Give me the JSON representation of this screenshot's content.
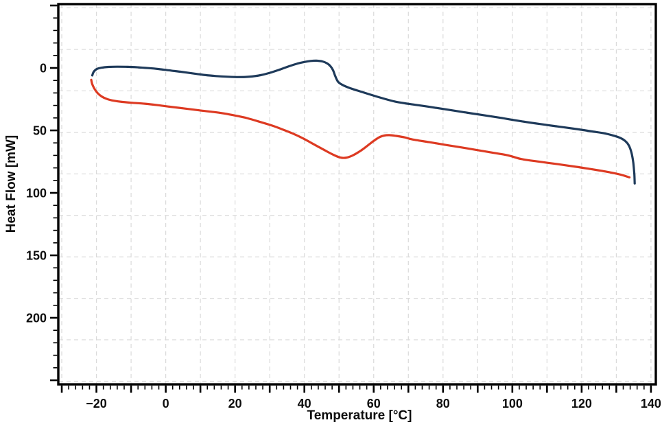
{
  "figure": {
    "background": "#ffffff",
    "spine_color": "#000000",
    "grid_color": "#dadada",
    "tick_color": "#000000",
    "tick_label_color": "#0d0d0d"
  },
  "axes": {
    "x_label": "Temperature [°C]",
    "y_label": "Heat Flow [mW]"
  },
  "chart_data": {
    "type": "line",
    "title": "",
    "xlabel": "Temperature [°C]",
    "ylabel": "Heat Flow [mW]",
    "xlim": [
      -30.8,
      141.4
    ],
    "ylim": [
      -51.1,
      253.3
    ],
    "y_axis_inverted": true,
    "grid": {
      "on": true,
      "style": "dashed",
      "x_step": 10,
      "y_values": [
        -48.1,
        -14.9,
        18.3,
        51.5,
        84.8,
        118.0,
        151.2,
        184.4,
        217.6,
        250.8
      ]
    },
    "x_major_tick_step": 10,
    "x_minor_tick_step": 2,
    "y_major_tick_step": 50,
    "y_minor_tick_step": 10,
    "x_tick_labels": [
      -20,
      0,
      20,
      40,
      60,
      80,
      100,
      120,
      140
    ],
    "y_tick_labels": [
      0,
      50,
      100,
      150,
      200
    ],
    "legend": "none",
    "series": [
      {
        "name": "red-lower-curve",
        "color": "#dd3a22",
        "points": [
          [
            -21.5,
            9.5
          ],
          [
            -21.2,
            13.0
          ],
          [
            -20.6,
            16.5
          ],
          [
            -19.7,
            20.0
          ],
          [
            -18.5,
            22.8
          ],
          [
            -17.0,
            24.8
          ],
          [
            -15.0,
            26.2
          ],
          [
            -12.5,
            27.2
          ],
          [
            -9.5,
            27.9
          ],
          [
            -6.0,
            28.6
          ],
          [
            -2.5,
            29.7
          ],
          [
            1.0,
            31.0
          ],
          [
            5.0,
            32.3
          ],
          [
            9.0,
            33.7
          ],
          [
            13.0,
            35.0
          ],
          [
            16.5,
            36.3
          ],
          [
            20.0,
            38.1
          ],
          [
            23.4,
            40.1
          ],
          [
            27.0,
            43.0
          ],
          [
            30.8,
            46.2
          ],
          [
            33.5,
            49.0
          ],
          [
            36.5,
            52.3
          ],
          [
            39.5,
            56.2
          ],
          [
            42.0,
            60.0
          ],
          [
            44.5,
            63.8
          ],
          [
            46.5,
            66.8
          ],
          [
            48.3,
            69.4
          ],
          [
            49.8,
            71.2
          ],
          [
            51.0,
            72.0
          ],
          [
            52.3,
            71.7
          ],
          [
            53.8,
            70.2
          ],
          [
            55.5,
            67.6
          ],
          [
            57.3,
            64.2
          ],
          [
            59.0,
            60.5
          ],
          [
            60.5,
            57.4
          ],
          [
            61.8,
            55.2
          ],
          [
            63.0,
            54.1
          ],
          [
            64.5,
            53.8
          ],
          [
            66.5,
            54.4
          ],
          [
            69.0,
            55.6
          ],
          [
            71.0,
            57.1
          ],
          [
            76.0,
            59.4
          ],
          [
            81.0,
            61.7
          ],
          [
            87.0,
            64.4
          ],
          [
            93.0,
            67.2
          ],
          [
            98.6,
            69.9
          ],
          [
            102.6,
            72.9
          ],
          [
            108.0,
            75.1
          ],
          [
            113.0,
            77.0
          ],
          [
            118.4,
            79.1
          ],
          [
            122.5,
            80.9
          ],
          [
            126.0,
            82.5
          ],
          [
            129.5,
            84.3
          ],
          [
            131.8,
            85.8
          ],
          [
            133.8,
            87.6
          ]
        ]
      },
      {
        "name": "navy-upper-curve",
        "color": "#1e3a5a",
        "points": [
          [
            -21.2,
            6.0
          ],
          [
            -20.8,
            3.2
          ],
          [
            -20.0,
            1.0
          ],
          [
            -18.5,
            -0.2
          ],
          [
            -16.5,
            -0.8
          ],
          [
            -14.0,
            -1.0
          ],
          [
            -11.0,
            -0.9
          ],
          [
            -8.0,
            -0.5
          ],
          [
            -5.0,
            0.1
          ],
          [
            -2.0,
            0.9
          ],
          [
            1.5,
            2.1
          ],
          [
            5.0,
            3.3
          ],
          [
            8.5,
            4.6
          ],
          [
            11.5,
            5.7
          ],
          [
            14.5,
            6.5
          ],
          [
            17.5,
            7.0
          ],
          [
            20.5,
            7.3
          ],
          [
            23.0,
            7.2
          ],
          [
            25.5,
            6.6
          ],
          [
            28.0,
            5.4
          ],
          [
            30.5,
            3.5
          ],
          [
            33.0,
            1.2
          ],
          [
            35.5,
            -1.3
          ],
          [
            38.0,
            -3.5
          ],
          [
            40.0,
            -4.8
          ],
          [
            41.8,
            -5.6
          ],
          [
            43.5,
            -5.8
          ],
          [
            45.2,
            -5.2
          ],
          [
            46.5,
            -3.8
          ],
          [
            47.5,
            -1.5
          ],
          [
            48.3,
            2.0
          ],
          [
            48.9,
            6.5
          ],
          [
            49.7,
            11.0
          ],
          [
            50.8,
            13.3
          ],
          [
            52.2,
            15.1
          ],
          [
            54.0,
            16.9
          ],
          [
            56.0,
            18.7
          ],
          [
            58.5,
            20.9
          ],
          [
            61.0,
            23.0
          ],
          [
            63.5,
            25.0
          ],
          [
            66.0,
            26.8
          ],
          [
            69.0,
            28.3
          ],
          [
            72.0,
            29.5
          ],
          [
            76.0,
            31.1
          ],
          [
            80.5,
            33.0
          ],
          [
            85.5,
            35.2
          ],
          [
            90.7,
            37.4
          ],
          [
            96.5,
            39.9
          ],
          [
            102.6,
            42.7
          ],
          [
            108.0,
            44.9
          ],
          [
            113.0,
            46.8
          ],
          [
            118.5,
            48.9
          ],
          [
            123.0,
            50.8
          ],
          [
            126.5,
            52.3
          ],
          [
            129.0,
            54.0
          ],
          [
            131.0,
            55.8
          ],
          [
            132.5,
            58.3
          ],
          [
            133.6,
            62.0
          ],
          [
            134.4,
            68.0
          ],
          [
            134.9,
            76.0
          ],
          [
            135.2,
            85.0
          ],
          [
            135.3,
            92.5
          ]
        ]
      }
    ]
  }
}
